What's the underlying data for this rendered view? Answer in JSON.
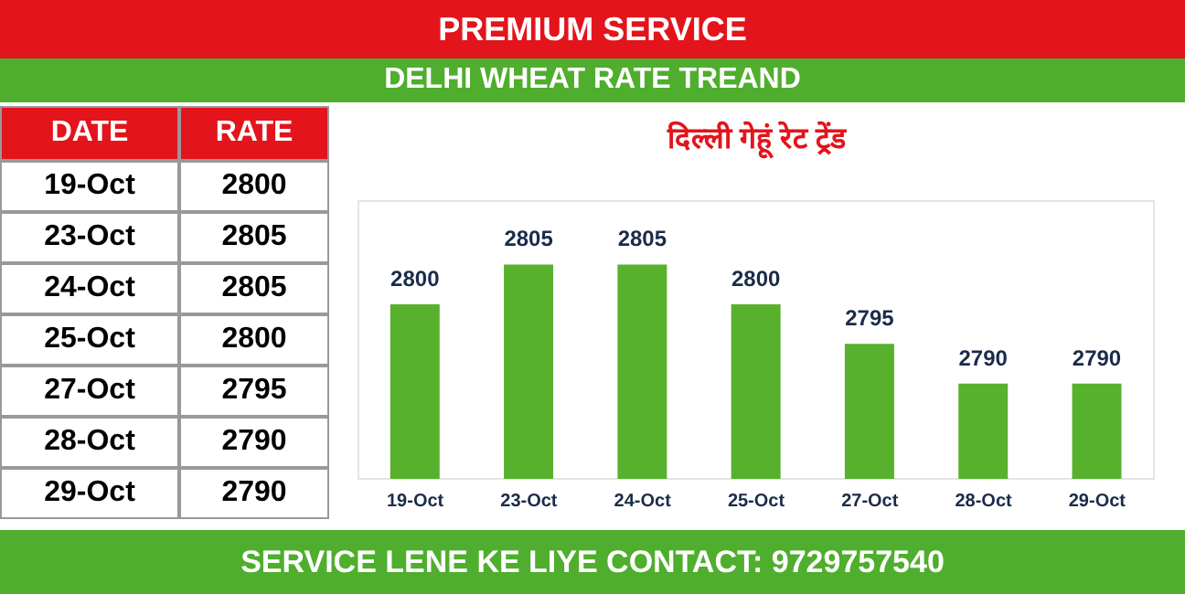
{
  "chart_data": {
    "type": "bar",
    "title": "PREMIUM SERVICE",
    "subtitle": "DELHI WHEAT RATE TREAND",
    "annotations": [
      "दिल्ली गेहूं रेट ट्रेंड",
      "SERVICE LENE KE LIYE CONTACT: 9729757540",
      "DATE",
      "RATE",
      "2800",
      "2805",
      "2805",
      "2800",
      "2795",
      "2790",
      "2790"
    ],
    "categories": [
      "19-Oct",
      "23-Oct",
      "24-Oct",
      "25-Oct",
      "27-Oct",
      "28-Oct",
      "29-Oct"
    ],
    "values": [
      2800,
      2805,
      2805,
      2800,
      2795,
      2790,
      2790
    ],
    "color": "#58b12c",
    "ylim": [
      2778,
      2813
    ],
    "data_labels": true,
    "tick_labels": "x",
    "grid": false
  }
}
